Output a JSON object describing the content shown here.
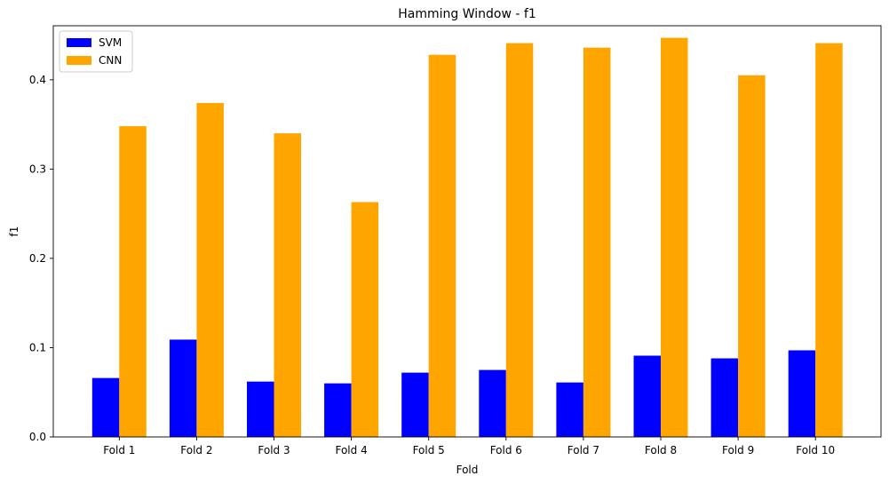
{
  "chart_data": {
    "type": "bar",
    "title": "Hamming Window - f1",
    "xlabel": "Fold",
    "ylabel": "f1",
    "categories": [
      "Fold 1",
      "Fold 2",
      "Fold 3",
      "Fold 4",
      "Fold 5",
      "Fold 6",
      "Fold 7",
      "Fold 8",
      "Fold 9",
      "Fold 10"
    ],
    "series": [
      {
        "name": "SVM",
        "color": "#0000ff",
        "values": [
          0.066,
          0.109,
          0.062,
          0.06,
          0.072,
          0.075,
          0.061,
          0.091,
          0.088,
          0.097
        ]
      },
      {
        "name": "CNN",
        "color": "#ffa500",
        "values": [
          0.348,
          0.374,
          0.34,
          0.263,
          0.428,
          0.441,
          0.436,
          0.447,
          0.405,
          0.441
        ]
      }
    ],
    "ylim": [
      0,
      0.4605
    ],
    "yticks": [
      "0.0",
      "0.1",
      "0.2",
      "0.3",
      "0.4"
    ],
    "grid": false,
    "legend_position": "upper-left"
  }
}
